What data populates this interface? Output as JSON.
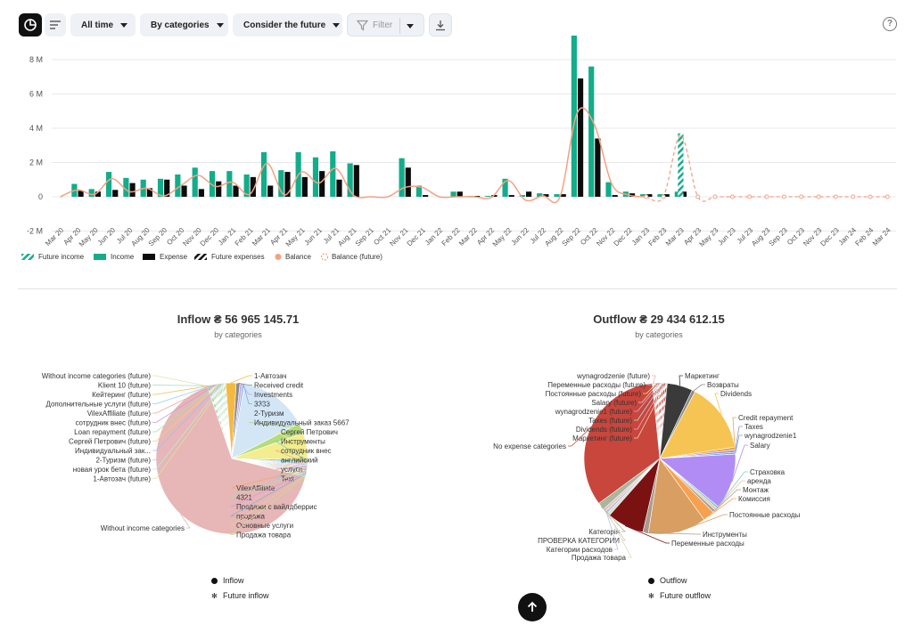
{
  "toolbar": {
    "period": "All time",
    "grouping": "By categories",
    "future": "Consider the future",
    "filter": "Filter",
    "help": "?"
  },
  "colors": {
    "income": "#12ad8a",
    "expense": "#0c0c0c",
    "balance": "#f4a183",
    "pie_inflow": "#e7b6b6",
    "pie_outflow": "#c9463d"
  },
  "chart_data": [
    {
      "type": "bar",
      "title": "",
      "ylim": [
        -2000000,
        9300000
      ],
      "yticks": [
        "-2 M",
        "0",
        "2 M",
        "4 M",
        "6 M",
        "8 M"
      ],
      "grid": true,
      "legend_position": "bottom-left",
      "categories": [
        "Mar 20",
        "Apr 20",
        "May 20",
        "Jun 20",
        "Jul 20",
        "Aug 20",
        "Sep 20",
        "Oct 20",
        "Nov 20",
        "Dec 20",
        "Jan 21",
        "Feb 21",
        "Mar 21",
        "Apr 21",
        "May 21",
        "Jun 21",
        "Jul 21",
        "Aug 21",
        "Sep 21",
        "Oct 21",
        "Nov 21",
        "Dec 21",
        "Jan 22",
        "Feb 22",
        "Mar 22",
        "Apr 22",
        "May 22",
        "Jun 22",
        "Jul 22",
        "Aug 22",
        "Sep 22",
        "Oct 22",
        "Nov 22",
        "Dec 22",
        "Jan 23",
        "Feb 23",
        "Mar 23",
        "Apr 23",
        "May 23",
        "Jun 23",
        "Jul 23",
        "Aug 23",
        "Sep 23",
        "Oct 23",
        "Nov 23",
        "Dec 23",
        "Jan 24",
        "Feb 24",
        "Mar 24"
      ],
      "series": [
        {
          "name": "Future income",
          "values": [
            0,
            0,
            0,
            0,
            0,
            0,
            0,
            0,
            0,
            0,
            0,
            0,
            0,
            0,
            0,
            0,
            0,
            0,
            0,
            0,
            0,
            0,
            0,
            0,
            0,
            0,
            0,
            0,
            0,
            0,
            0,
            0,
            0,
            0,
            0,
            0,
            3700000,
            0,
            0,
            0,
            0,
            0,
            0,
            0,
            0,
            0,
            0,
            0,
            0
          ]
        },
        {
          "name": "Income",
          "values": [
            0,
            750000,
            450000,
            1450000,
            1100000,
            1000000,
            1050000,
            1300000,
            1700000,
            1500000,
            1500000,
            1300000,
            2600000,
            1550000,
            2600000,
            2300000,
            2650000,
            1950000,
            0,
            0,
            2250000,
            650000,
            0,
            300000,
            50000,
            50000,
            1050000,
            100000,
            200000,
            150000,
            9800000,
            7600000,
            850000,
            300000,
            150000,
            150000,
            300000,
            0,
            0,
            0,
            0,
            0,
            0,
            0,
            0,
            0,
            0,
            0,
            0
          ]
        },
        {
          "name": "Expense",
          "values": [
            0,
            350000,
            300000,
            400000,
            800000,
            500000,
            1000000,
            650000,
            450000,
            900000,
            650000,
            1150000,
            650000,
            1450000,
            1150000,
            1500000,
            1000000,
            1850000,
            0,
            0,
            1700000,
            100000,
            0,
            300000,
            50000,
            100000,
            100000,
            300000,
            150000,
            150000,
            6900000,
            3400000,
            100000,
            200000,
            150000,
            150000,
            300000,
            0,
            0,
            0,
            0,
            0,
            0,
            0,
            0,
            0,
            0,
            0,
            0
          ]
        },
        {
          "name": "Future expenses",
          "values": [
            0,
            0,
            0,
            0,
            0,
            0,
            0,
            0,
            0,
            0,
            0,
            0,
            0,
            0,
            0,
            0,
            0,
            0,
            0,
            0,
            0,
            0,
            0,
            0,
            0,
            0,
            0,
            0,
            0,
            0,
            0,
            0,
            0,
            0,
            0,
            0,
            0,
            0,
            0,
            0,
            0,
            0,
            0,
            0,
            0,
            0,
            0,
            0,
            0
          ]
        },
        {
          "name": "Balance",
          "values": [
            0,
            400000,
            150000,
            1050000,
            300000,
            500000,
            50000,
            650000,
            1250000,
            600000,
            850000,
            150000,
            1950000,
            100000,
            1450000,
            800000,
            1650000,
            100000,
            0,
            0,
            550000,
            550000,
            0,
            0,
            0,
            -50000,
            950000,
            -200000,
            50000,
            0,
            4900000,
            4200000,
            750000,
            100000,
            0,
            0,
            0,
            0,
            0,
            0,
            0,
            0,
            0,
            0,
            0,
            0,
            0,
            0,
            0
          ]
        },
        {
          "name": "Balance (future)",
          "values": [
            null,
            null,
            null,
            null,
            null,
            null,
            null,
            null,
            null,
            null,
            null,
            null,
            null,
            null,
            null,
            null,
            null,
            null,
            null,
            null,
            null,
            null,
            null,
            null,
            null,
            null,
            null,
            null,
            null,
            null,
            null,
            null,
            null,
            null,
            0,
            0,
            3600000,
            0,
            0,
            0,
            0,
            0,
            0,
            0,
            0,
            0,
            0,
            0,
            0
          ]
        }
      ]
    },
    {
      "type": "pie",
      "title": "Inflow ₴ 56 965 145.71",
      "subtitle": "by categories",
      "legend": [
        "Inflow",
        "Future inflow"
      ],
      "slices": [
        {
          "label": "Without income categories (future)",
          "value": 0.6,
          "color": "#d5e8b8",
          "hatch": true
        },
        {
          "label": "Klient 10 (future)",
          "value": 0.3,
          "color": "#a8d8c8",
          "hatch": true
        },
        {
          "label": "Кейтеринг (future)",
          "value": 0.3,
          "color": "#f0c060",
          "hatch": true
        },
        {
          "label": "Дополнительные услуги (future)",
          "value": 0.3,
          "color": "#8fd0f0",
          "hatch": true
        },
        {
          "label": "VilexAffiliate (future)",
          "value": 0.3,
          "color": "#f6a0a0",
          "hatch": true
        },
        {
          "label": "сотрудник внес (future)",
          "value": 0.3,
          "color": "#c0a0e0",
          "hatch": true
        },
        {
          "label": "Loan repayment (future)",
          "value": 0.3,
          "color": "#b0e0a0",
          "hatch": true
        },
        {
          "label": "Сергей Петрович (future)",
          "value": 0.3,
          "color": "#f0d080",
          "hatch": true
        },
        {
          "label": "Индивидуальный зак...",
          "value": 0.3,
          "color": "#a0c0f0",
          "hatch": true
        },
        {
          "label": "2-Туризм (future)",
          "value": 0.3,
          "color": "#f0b0d0",
          "hatch": true
        },
        {
          "label": "новая урок бета  (future)",
          "value": 0.3,
          "color": "#b0f0e0",
          "hatch": true
        },
        {
          "label": "1-Автозач (future)",
          "value": 0.3,
          "color": "#e0e0a0",
          "hatch": true
        },
        {
          "label": "1-Автозач",
          "value": 2.2,
          "color": "#f5b942"
        },
        {
          "label": "Received credit",
          "value": 0.8,
          "color": "#8a8a8a"
        },
        {
          "label": "Investments",
          "value": 0.5,
          "color": "#c7a9e8"
        },
        {
          "label": "3333",
          "value": 0.4,
          "color": "#7fb2e5"
        },
        {
          "label": "2-Туризм",
          "value": 14.5,
          "color": "#d3e6f6"
        },
        {
          "label": "Индивидуальный заказ 5667",
          "value": 2.2,
          "color": "#b5dc7a"
        },
        {
          "label": "Сергей Петрович",
          "value": 5.6,
          "color": "#f3ed8e"
        },
        {
          "label": "Инструменты",
          "value": 0.6,
          "color": "#7fd1b9"
        },
        {
          "label": "сотрудник внес",
          "value": 0.3,
          "color": "#f3b28e"
        },
        {
          "label": "английский",
          "value": 0.3,
          "color": "#9ed0f0"
        },
        {
          "label": "услуги",
          "value": 0.3,
          "color": "#f0a0b0"
        },
        {
          "label": "Text",
          "value": 0.3,
          "color": "#b0c0f0"
        },
        {
          "label": "VilexAffiliate",
          "value": 0.3,
          "color": "#e0b070"
        },
        {
          "label": "4321",
          "value": 0.3,
          "color": "#a0e0b0"
        },
        {
          "label": "Продажи с вайлдберрис",
          "value": 0.3,
          "color": "#d0a0e0"
        },
        {
          "label": "продажа",
          "value": 0.3,
          "color": "#90b0d0"
        },
        {
          "label": "Основные услуги",
          "value": 0.3,
          "color": "#e0d090"
        },
        {
          "label": "Продажа товара",
          "value": 0.3,
          "color": "#c0e090"
        },
        {
          "label": "Without income categories",
          "value": 65.0,
          "color": "#e7b6b6"
        }
      ]
    },
    {
      "type": "pie",
      "title": "Outflow ₴ 29 434 612.15",
      "subtitle": "by categories",
      "legend": [
        "Outflow",
        "Future outflow"
      ],
      "slices": [
        {
          "label": "wynagrodzenie (future)",
          "value": 0.4,
          "color": "#f0b0b0",
          "hatch": true
        },
        {
          "label": "Переменные расходы (future)",
          "value": 0.4,
          "color": "#b0d0f0",
          "hatch": true
        },
        {
          "label": "Постоянные расходы (future)",
          "value": 0.4,
          "color": "#d0f0b0",
          "hatch": true
        },
        {
          "label": "Salary (future)",
          "value": 0.4,
          "color": "#f0d0a0",
          "hatch": true
        },
        {
          "label": "wynagrodzenie1 (future)",
          "value": 0.4,
          "color": "#c0b0f0",
          "hatch": true
        },
        {
          "label": "Taxes (future)",
          "value": 0.4,
          "color": "#a0f0d0",
          "hatch": true
        },
        {
          "label": "Dividends (future)",
          "value": 0.4,
          "color": "#f0a0d0",
          "hatch": true
        },
        {
          "label": "Маркетинг (future)",
          "value": 0.4,
          "color": "#e0e0b0",
          "hatch": true
        },
        {
          "label": "Маркетинг",
          "value": 5.5,
          "color": "#3a3a3a"
        },
        {
          "label": "Возвраты",
          "value": 0.7,
          "color": "#8a8a8a"
        },
        {
          "label": "Dividends",
          "value": 15.0,
          "color": "#f6c452"
        },
        {
          "label": "Credit repayment",
          "value": 0.6,
          "color": "#e8a34c"
        },
        {
          "label": "Taxes",
          "value": 0.5,
          "color": "#9b8fd8"
        },
        {
          "label": "wynagrodzenie1",
          "value": 0.4,
          "color": "#6fa8dc"
        },
        {
          "label": "Salary",
          "value": 12.0,
          "color": "#b18cf5"
        },
        {
          "label": "Страховка",
          "value": 0.5,
          "color": "#80d0c0"
        },
        {
          "label": "аренда",
          "value": 0.5,
          "color": "#f0c0a0"
        },
        {
          "label": "Монтаж",
          "value": 0.6,
          "color": "#a0a0a0"
        },
        {
          "label": "Комиссия",
          "value": 2.5,
          "color": "#f7a14e"
        },
        {
          "label": "Постоянные расходы",
          "value": 12.5,
          "color": "#d99e62"
        },
        {
          "label": "Инструменты",
          "value": 1.2,
          "color": "#a89b8c"
        },
        {
          "label": "Переменные расходы",
          "value": 8.0,
          "color": "#7b1212"
        },
        {
          "label": "Продажа товара",
          "value": 0.6,
          "color": "#d0e0c0"
        },
        {
          "label": "Категории расходов",
          "value": 0.6,
          "color": "#c0c0e0"
        },
        {
          "label": "ПРОВЕРКА КАТЕГОРИИ",
          "value": 0.6,
          "color": "#e0c0c0"
        },
        {
          "label": "Категорія",
          "value": 1.6,
          "color": "#aab59a"
        },
        {
          "label": "No expense categories",
          "value": 33.8,
          "color": "#c9463d"
        }
      ]
    }
  ]
}
